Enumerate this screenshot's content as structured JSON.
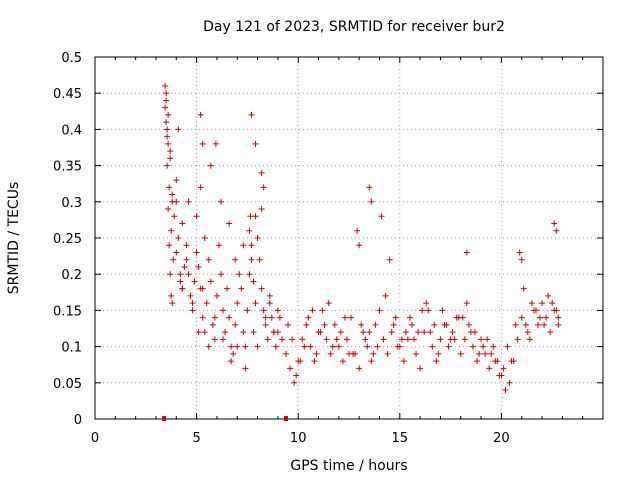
{
  "chart_data": {
    "type": "scatter",
    "title": "Day 121 of 2023, SRMTID for receiver bur2",
    "xlabel": "GPS time / hours",
    "ylabel": "SRMTID / TECUs",
    "xlim": [
      0,
      25
    ],
    "ylim": [
      0,
      0.5
    ],
    "xticks": [
      0,
      5,
      10,
      15,
      20
    ],
    "yticks": [
      0,
      0.05,
      0.1,
      0.15,
      0.2,
      0.25,
      0.3,
      0.35,
      0.4,
      0.45,
      0.5
    ],
    "grid": true,
    "marker": "+",
    "color": "#dd0000",
    "series": [
      {
        "name": "SRMTID",
        "x": [
          3.45,
          3.5,
          3.55,
          3.6,
          3.65,
          3.7,
          3.75,
          3.8,
          3.85,
          3.9,
          4.0,
          4.1,
          4.2,
          4.3,
          4.4,
          4.5,
          4.6,
          4.7,
          4.8,
          4.9,
          5.0,
          5.1,
          5.2,
          5.3,
          5.4,
          5.5,
          5.6,
          5.7,
          5.8,
          5.9,
          6.0,
          6.1,
          6.2,
          6.3,
          6.4,
          6.5,
          6.6,
          6.7,
          6.8,
          6.9,
          7.0,
          7.1,
          7.2,
          7.3,
          7.4,
          7.5,
          7.6,
          7.7,
          7.8,
          7.9,
          8.0,
          8.1,
          8.2,
          8.3,
          8.4,
          8.5,
          8.6,
          8.7,
          8.8,
          8.9,
          9.0,
          9.1,
          9.2,
          9.4,
          9.6,
          9.8,
          10.0,
          10.2,
          10.4,
          10.6,
          10.8,
          11.0,
          11.2,
          11.4,
          11.6,
          11.8,
          12.0,
          12.2,
          12.4,
          12.6,
          12.8,
          13.0,
          13.2,
          13.4,
          13.6,
          13.8,
          14.0,
          14.2,
          14.4,
          14.6,
          14.8,
          15.0,
          15.2,
          15.4,
          15.6,
          15.8,
          16.0,
          16.2,
          16.4,
          16.6,
          16.8,
          17.0,
          17.2,
          17.4,
          17.6,
          17.8,
          18.0,
          18.2,
          18.4,
          18.6,
          18.8,
          19.0,
          19.2,
          19.4,
          19.6,
          19.8,
          20.0,
          20.2,
          20.4,
          20.6,
          20.8,
          21.0,
          21.2,
          21.4,
          21.6,
          21.8,
          22.0,
          22.2,
          22.4,
          22.6,
          22.8,
          3.5,
          3.6,
          3.7,
          3.8,
          4.1,
          4.3,
          4.6,
          5.0,
          5.2,
          5.4,
          5.7,
          6.2,
          6.6,
          6.9,
          7.3,
          7.7,
          7.9,
          8.2,
          8.6,
          9.0,
          3.45,
          3.55,
          3.65,
          3.75,
          4.0,
          4.2,
          4.5,
          4.8,
          5.1,
          5.3,
          5.6,
          5.9,
          6.3,
          6.7,
          7.0,
          7.4,
          7.8,
          8.0,
          8.4,
          8.8,
          9.9,
          10.3,
          10.7,
          11.1,
          11.5,
          11.9,
          12.3,
          12.7,
          13.1,
          13.5,
          13.9,
          14.3,
          14.7,
          15.1,
          15.5,
          15.9,
          16.3,
          16.7,
          17.1,
          17.5,
          17.9,
          18.3,
          18.7,
          19.1,
          19.5,
          19.9,
          20.3,
          20.7,
          21.1,
          21.5,
          21.9,
          22.3,
          22.7,
          13.5,
          13.6,
          14.1,
          14.5,
          12.9,
          13.0,
          18.3,
          20.9,
          21.0,
          22.6,
          22.7,
          3.5,
          3.55,
          3.6,
          3.7,
          3.8,
          4.0,
          4.3,
          5.2,
          5.3,
          5.95,
          7.6,
          7.65,
          7.7,
          7.9,
          8.2,
          8.3,
          9.5,
          9.7,
          10.1,
          10.5,
          10.9,
          11.3,
          11.7,
          12.1,
          12.5,
          13.3,
          13.7,
          14.9,
          15.3,
          15.7,
          16.1,
          16.5,
          16.9,
          17.3,
          17.7,
          18.1,
          18.5,
          18.9,
          19.3,
          19.7,
          20.1,
          20.5,
          21.3,
          21.7,
          22.1,
          22.5,
          22.8
        ],
        "y": [
          0.46,
          0.41,
          0.35,
          0.29,
          0.24,
          0.2,
          0.17,
          0.16,
          0.22,
          0.28,
          0.33,
          0.25,
          0.2,
          0.18,
          0.21,
          0.24,
          0.2,
          0.17,
          0.15,
          0.19,
          0.23,
          0.21,
          0.18,
          0.14,
          0.12,
          0.16,
          0.22,
          0.19,
          0.13,
          0.11,
          0.17,
          0.24,
          0.2,
          0.15,
          0.12,
          0.18,
          0.14,
          0.1,
          0.09,
          0.13,
          0.16,
          0.2,
          0.18,
          0.12,
          0.1,
          0.15,
          0.2,
          0.24,
          0.19,
          0.16,
          0.25,
          0.22,
          0.18,
          0.15,
          0.13,
          0.11,
          0.16,
          0.14,
          0.12,
          0.1,
          0.12,
          0.14,
          0.11,
          0.09,
          0.07,
          0.05,
          0.08,
          0.11,
          0.13,
          0.1,
          0.08,
          0.12,
          0.15,
          0.11,
          0.09,
          0.13,
          0.1,
          0.08,
          0.11,
          0.14,
          0.09,
          0.07,
          0.12,
          0.1,
          0.08,
          0.13,
          0.15,
          0.11,
          0.09,
          0.12,
          0.14,
          0.1,
          0.08,
          0.11,
          0.13,
          0.09,
          0.07,
          0.12,
          0.15,
          0.1,
          0.08,
          0.11,
          0.13,
          0.1,
          0.12,
          0.14,
          0.09,
          0.11,
          0.13,
          0.1,
          0.08,
          0.11,
          0.09,
          0.07,
          0.1,
          0.08,
          0.06,
          0.04,
          0.05,
          0.08,
          0.11,
          0.14,
          0.13,
          0.11,
          0.15,
          0.13,
          0.16,
          0.14,
          0.12,
          0.15,
          0.13,
          0.45,
          0.42,
          0.37,
          0.31,
          0.4,
          0.27,
          0.3,
          0.28,
          0.32,
          0.25,
          0.35,
          0.3,
          0.27,
          0.22,
          0.24,
          0.42,
          0.38,
          0.29,
          0.17,
          0.15,
          0.43,
          0.39,
          0.32,
          0.26,
          0.23,
          0.19,
          0.22,
          0.16,
          0.12,
          0.18,
          0.1,
          0.14,
          0.11,
          0.08,
          0.1,
          0.07,
          0.12,
          0.1,
          0.14,
          0.12,
          0.06,
          0.1,
          0.15,
          0.12,
          0.16,
          0.11,
          0.14,
          0.09,
          0.13,
          0.12,
          0.1,
          0.17,
          0.13,
          0.11,
          0.14,
          0.12,
          0.16,
          0.13,
          0.15,
          0.11,
          0.14,
          0.16,
          0.12,
          0.1,
          0.09,
          0.06,
          0.1,
          0.13,
          0.18,
          0.16,
          0.14,
          0.17,
          0.15,
          0.32,
          0.3,
          0.28,
          0.22,
          0.26,
          0.24,
          0.23,
          0.23,
          0.22,
          0.27,
          0.26,
          0.44,
          0.4,
          0.38,
          0.36,
          0.3,
          0.3,
          0.18,
          0.42,
          0.38,
          0.38,
          0.26,
          0.28,
          0.22,
          0.28,
          0.34,
          0.32,
          0.13,
          0.11,
          0.08,
          0.14,
          0.09,
          0.13,
          0.1,
          0.12,
          0.09,
          0.11,
          0.09,
          0.1,
          0.12,
          0.11,
          0.15,
          0.12,
          0.09,
          0.13,
          0.11,
          0.14,
          0.12,
          0.09,
          0.11,
          0.08,
          0.07,
          0.08,
          0.12,
          0.15,
          0.13,
          0.16,
          0.14
        ]
      }
    ]
  },
  "coverage_markers": [
    3.4,
    9.4
  ],
  "coverage_marker_color": "#dd0000"
}
